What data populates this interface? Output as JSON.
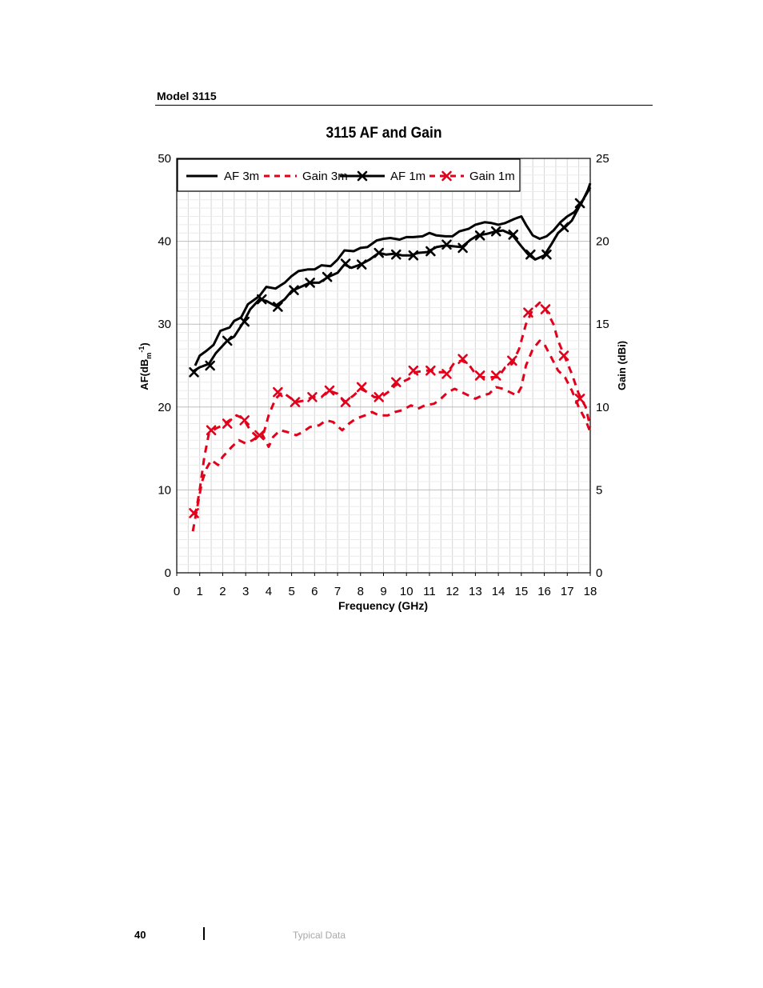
{
  "header": {
    "model": "Model 3115"
  },
  "footer": {
    "page_number": "40",
    "section": "Typical Data"
  },
  "chart_data": {
    "type": "line",
    "title": "3115 AF and Gain",
    "xlabel": "Frequency (GHz)",
    "ylabel_left": "AF(dB",
    "ylabel_left_sub": "m",
    "ylabel_left_sup": "-1",
    "ylabel_left_close": ")",
    "ylabel_right": "Gain (dBi)",
    "xlim": [
      0,
      18
    ],
    "ylim_left": [
      0,
      50
    ],
    "ylim_right": [
      0,
      25
    ],
    "x_ticks": [
      "0",
      "1",
      "2",
      "3",
      "4",
      "5",
      "6",
      "7",
      "8",
      "9",
      "10",
      "11",
      "12",
      "13",
      "14",
      "15",
      "16",
      "17",
      "18"
    ],
    "y_ticks_left": [
      "0",
      "10",
      "20",
      "30",
      "40",
      "50"
    ],
    "y_ticks_right": [
      "0",
      "5",
      "10",
      "15",
      "20",
      "25"
    ],
    "grid": true,
    "legend_position": "top-left",
    "series": [
      {
        "name": "AF 3m",
        "axis": "left",
        "color": "#000000",
        "style": "solid",
        "marker": "none",
        "points": [
          [
            0.8,
            25
          ],
          [
            1.0,
            26.2
          ],
          [
            1.3,
            26.8
          ],
          [
            1.6,
            27.5
          ],
          [
            1.9,
            29.2
          ],
          [
            2.3,
            29.6
          ],
          [
            2.5,
            30.4
          ],
          [
            2.8,
            30.8
          ],
          [
            3.1,
            32.4
          ],
          [
            3.4,
            33
          ],
          [
            3.6,
            33.4
          ],
          [
            3.9,
            34.5
          ],
          [
            4.3,
            34.3
          ],
          [
            4.7,
            35
          ],
          [
            5.0,
            35.8
          ],
          [
            5.3,
            36.4
          ],
          [
            5.7,
            36.6
          ],
          [
            6.0,
            36.6
          ],
          [
            6.3,
            37.1
          ],
          [
            6.7,
            37.0
          ],
          [
            7.0,
            37.8
          ],
          [
            7.3,
            38.9
          ],
          [
            7.7,
            38.8
          ],
          [
            8.0,
            39.2
          ],
          [
            8.3,
            39.3
          ],
          [
            8.7,
            40.1
          ],
          [
            9.0,
            40.3
          ],
          [
            9.3,
            40.4
          ],
          [
            9.7,
            40.2
          ],
          [
            10.0,
            40.5
          ],
          [
            10.3,
            40.5
          ],
          [
            10.7,
            40.6
          ],
          [
            11.0,
            41.0
          ],
          [
            11.3,
            40.7
          ],
          [
            11.7,
            40.6
          ],
          [
            12.0,
            40.6
          ],
          [
            12.3,
            41.2
          ],
          [
            12.7,
            41.5
          ],
          [
            13.0,
            42.0
          ],
          [
            13.4,
            42.3
          ],
          [
            13.7,
            42.2
          ],
          [
            14.0,
            42.0
          ],
          [
            14.3,
            42.2
          ],
          [
            14.7,
            42.7
          ],
          [
            15.0,
            43.0
          ],
          [
            15.2,
            42.0
          ],
          [
            15.5,
            40.7
          ],
          [
            15.8,
            40.3
          ],
          [
            16.1,
            40.6
          ],
          [
            16.4,
            41.3
          ],
          [
            16.7,
            42.3
          ],
          [
            17.0,
            43.0
          ],
          [
            17.3,
            43.5
          ],
          [
            17.6,
            44.5
          ],
          [
            17.9,
            46.2
          ],
          [
            18.0,
            47.0
          ]
        ]
      },
      {
        "name": "Gain 3m",
        "axis": "right",
        "color": "#e3001b",
        "style": "dashed",
        "marker": "none",
        "points": [
          [
            0.7,
            2.5
          ],
          [
            0.9,
            4.0
          ],
          [
            1.1,
            5.5
          ],
          [
            1.3,
            6.3
          ],
          [
            1.5,
            6.8
          ],
          [
            1.8,
            6.5
          ],
          [
            2.0,
            7.0
          ],
          [
            2.4,
            7.6
          ],
          [
            2.7,
            8.0
          ],
          [
            3.0,
            7.8
          ],
          [
            3.3,
            8.0
          ],
          [
            3.7,
            8.4
          ],
          [
            4.0,
            7.6
          ],
          [
            4.2,
            8.2
          ],
          [
            4.5,
            8.6
          ],
          [
            4.8,
            8.5
          ],
          [
            5.2,
            8.3
          ],
          [
            5.5,
            8.5
          ],
          [
            5.8,
            8.8
          ],
          [
            6.2,
            8.9
          ],
          [
            6.5,
            9.2
          ],
          [
            6.8,
            9.1
          ],
          [
            7.2,
            8.6
          ],
          [
            7.5,
            9.0
          ],
          [
            7.8,
            9.3
          ],
          [
            8.2,
            9.5
          ],
          [
            8.5,
            9.7
          ],
          [
            8.8,
            9.5
          ],
          [
            9.2,
            9.5
          ],
          [
            9.5,
            9.7
          ],
          [
            9.8,
            9.8
          ],
          [
            10.2,
            10.1
          ],
          [
            10.5,
            9.9
          ],
          [
            10.8,
            10.1
          ],
          [
            11.2,
            10.2
          ],
          [
            11.5,
            10.5
          ],
          [
            11.8,
            10.9
          ],
          [
            12.1,
            11.1
          ],
          [
            12.4,
            10.9
          ],
          [
            12.7,
            10.7
          ],
          [
            13.0,
            10.5
          ],
          [
            13.3,
            10.7
          ],
          [
            13.6,
            10.8
          ],
          [
            13.9,
            11.2
          ],
          [
            14.2,
            11.1
          ],
          [
            14.5,
            10.9
          ],
          [
            14.8,
            10.7
          ],
          [
            15.0,
            11.2
          ],
          [
            15.2,
            12.5
          ],
          [
            15.5,
            13.5
          ],
          [
            15.8,
            14.0
          ],
          [
            16.0,
            13.8
          ],
          [
            16.3,
            13.0
          ],
          [
            16.6,
            12.2
          ],
          [
            16.9,
            11.8
          ],
          [
            17.2,
            11.0
          ],
          [
            17.5,
            10.0
          ],
          [
            17.8,
            9.2
          ],
          [
            18.0,
            8.5
          ]
        ]
      },
      {
        "name": "AF 1m",
        "axis": "left",
        "color": "#000000",
        "style": "solid",
        "marker": "x",
        "points": [
          [
            0.7,
            24.3
          ],
          [
            1.0,
            24.8
          ],
          [
            1.4,
            25.2
          ],
          [
            1.7,
            26.5
          ],
          [
            2.2,
            28.0
          ],
          [
            2.5,
            28.5
          ],
          [
            2.9,
            30.2
          ],
          [
            3.2,
            31.8
          ],
          [
            3.6,
            33.0
          ],
          [
            3.9,
            32.8
          ],
          [
            4.3,
            32.2
          ],
          [
            4.7,
            33.0
          ],
          [
            5.0,
            34.0
          ],
          [
            5.4,
            34.5
          ],
          [
            5.8,
            35.0
          ],
          [
            6.2,
            35.0
          ],
          [
            6.6,
            35.7
          ],
          [
            7.0,
            36.2
          ],
          [
            7.3,
            37.2
          ],
          [
            7.6,
            36.8
          ],
          [
            8.0,
            37.2
          ],
          [
            8.4,
            37.8
          ],
          [
            8.8,
            38.6
          ],
          [
            9.1,
            38.4
          ],
          [
            9.5,
            38.5
          ],
          [
            9.8,
            38.3
          ],
          [
            10.2,
            38.3
          ],
          [
            10.5,
            38.6
          ],
          [
            10.9,
            38.7
          ],
          [
            11.3,
            39.3
          ],
          [
            11.7,
            39.5
          ],
          [
            12.0,
            39.4
          ],
          [
            12.4,
            39.3
          ],
          [
            12.8,
            40.2
          ],
          [
            13.1,
            40.7
          ],
          [
            13.5,
            40.9
          ],
          [
            13.9,
            41.2
          ],
          [
            14.2,
            41.3
          ],
          [
            14.6,
            40.8
          ],
          [
            15.0,
            39.4
          ],
          [
            15.3,
            38.4
          ],
          [
            15.6,
            37.8
          ],
          [
            16.0,
            38.3
          ],
          [
            16.3,
            39.6
          ],
          [
            16.6,
            41.0
          ],
          [
            16.9,
            41.7
          ],
          [
            17.2,
            42.5
          ],
          [
            17.6,
            44.6
          ],
          [
            17.9,
            46.0
          ],
          [
            18.0,
            46.5
          ]
        ],
        "marker_points": [
          [
            0.75,
            24.2
          ],
          [
            1.45,
            25.0
          ],
          [
            2.2,
            28.0
          ],
          [
            2.95,
            30.3
          ],
          [
            3.7,
            33.0
          ],
          [
            4.4,
            32.1
          ],
          [
            5.1,
            34.1
          ],
          [
            5.8,
            35.0
          ],
          [
            6.55,
            35.7
          ],
          [
            7.35,
            37.3
          ],
          [
            8.05,
            37.2
          ],
          [
            8.8,
            38.6
          ],
          [
            9.55,
            38.4
          ],
          [
            10.3,
            38.3
          ],
          [
            11.05,
            38.8
          ],
          [
            11.75,
            39.6
          ],
          [
            12.45,
            39.2
          ],
          [
            13.2,
            40.7
          ],
          [
            13.9,
            41.2
          ],
          [
            14.65,
            40.8
          ],
          [
            15.4,
            38.4
          ],
          [
            16.1,
            38.4
          ],
          [
            16.85,
            41.7
          ],
          [
            17.55,
            44.6
          ]
        ]
      },
      {
        "name": "Gain 1m",
        "axis": "right",
        "color": "#e3001b",
        "style": "dashed",
        "marker": "x",
        "points": [
          [
            0.7,
            3.5
          ],
          [
            0.85,
            3.8
          ],
          [
            1.0,
            5.0
          ],
          [
            1.2,
            7.0
          ],
          [
            1.4,
            8.4
          ],
          [
            1.7,
            8.7
          ],
          [
            2.0,
            8.9
          ],
          [
            2.3,
            9.2
          ],
          [
            2.6,
            9.5
          ],
          [
            2.9,
            9.3
          ],
          [
            3.2,
            8.6
          ],
          [
            3.5,
            8.2
          ],
          [
            3.8,
            8.5
          ],
          [
            4.0,
            9.5
          ],
          [
            4.3,
            10.5
          ],
          [
            4.6,
            10.9
          ],
          [
            4.9,
            10.6
          ],
          [
            5.2,
            10.3
          ],
          [
            5.6,
            10.4
          ],
          [
            5.9,
            10.6
          ],
          [
            6.3,
            10.6
          ],
          [
            6.6,
            11.0
          ],
          [
            7.0,
            10.8
          ],
          [
            7.3,
            10.3
          ],
          [
            7.7,
            10.7
          ],
          [
            8.0,
            11.1
          ],
          [
            8.3,
            10.9
          ],
          [
            8.6,
            10.6
          ],
          [
            8.9,
            10.6
          ],
          [
            9.2,
            10.9
          ],
          [
            9.5,
            11.3
          ],
          [
            9.8,
            11.5
          ],
          [
            10.1,
            11.7
          ],
          [
            10.4,
            12.1
          ],
          [
            10.8,
            12.2
          ],
          [
            11.1,
            12.2
          ],
          [
            11.4,
            12.1
          ],
          [
            11.8,
            12.1
          ],
          [
            12.1,
            12.7
          ],
          [
            12.4,
            12.8
          ],
          [
            12.7,
            12.6
          ],
          [
            13.0,
            12.0
          ],
          [
            13.3,
            11.8
          ],
          [
            13.7,
            11.8
          ],
          [
            14.0,
            11.8
          ],
          [
            14.3,
            12.4
          ],
          [
            14.6,
            12.6
          ],
          [
            14.9,
            13.5
          ],
          [
            15.2,
            15.0
          ],
          [
            15.5,
            15.9
          ],
          [
            15.8,
            16.3
          ],
          [
            16.1,
            15.8
          ],
          [
            16.4,
            15.0
          ],
          [
            16.6,
            14.0
          ],
          [
            16.9,
            13.0
          ],
          [
            17.2,
            12.0
          ],
          [
            17.5,
            10.8
          ],
          [
            17.8,
            10.0
          ],
          [
            18.0,
            8.8
          ]
        ],
        "marker_points": [
          [
            0.75,
            3.6
          ],
          [
            1.5,
            8.6
          ],
          [
            2.2,
            9.0
          ],
          [
            2.95,
            9.2
          ],
          [
            3.6,
            8.3
          ],
          [
            4.4,
            10.9
          ],
          [
            5.15,
            10.3
          ],
          [
            5.9,
            10.6
          ],
          [
            6.65,
            11.0
          ],
          [
            7.35,
            10.3
          ],
          [
            8.05,
            11.2
          ],
          [
            8.8,
            10.6
          ],
          [
            9.55,
            11.5
          ],
          [
            10.3,
            12.2
          ],
          [
            11.05,
            12.2
          ],
          [
            11.75,
            12.0
          ],
          [
            12.45,
            12.9
          ],
          [
            13.2,
            11.9
          ],
          [
            13.9,
            11.9
          ],
          [
            14.6,
            12.8
          ],
          [
            15.3,
            15.7
          ],
          [
            16.05,
            15.9
          ],
          [
            16.85,
            13.1
          ],
          [
            17.55,
            10.5
          ]
        ]
      }
    ]
  }
}
